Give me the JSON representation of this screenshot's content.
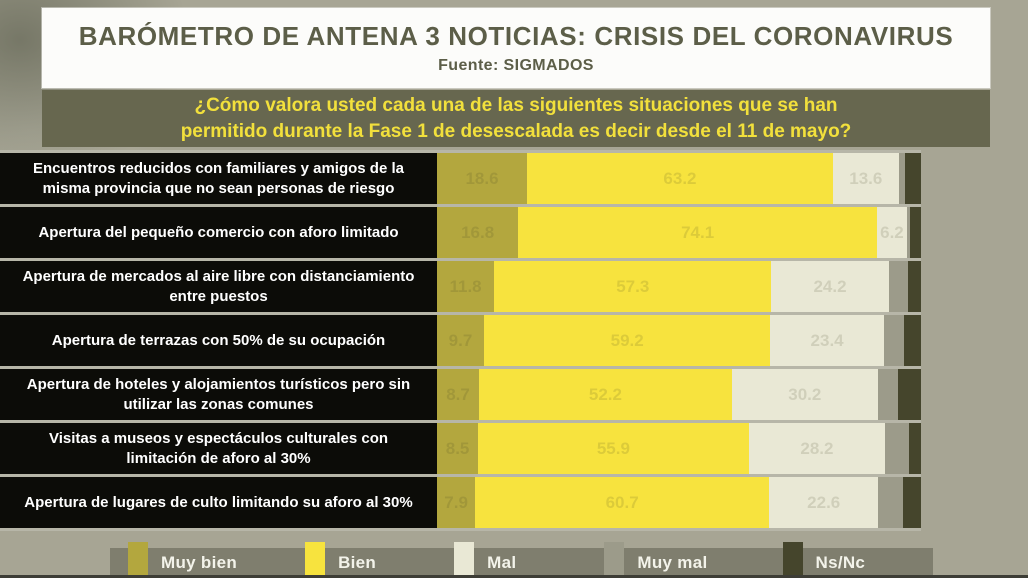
{
  "header": {
    "title": "BARÓMETRO DE ANTENA 3 NOTICIAS: CRISIS DEL CORONAVIRUS",
    "source": "Fuente: SIGMADOS"
  },
  "question": {
    "line1": "¿Cómo valora usted cada una de las siguientes situaciones que se han",
    "line2": "permitido durante la Fase 1 de desescalada es decir desde el 11 de mayo?"
  },
  "chart_data": {
    "type": "bar",
    "stacked": true,
    "orientation": "horizontal",
    "xlim": [
      0,
      100
    ],
    "legend_position": "bottom",
    "categories": [
      "Encuentros reducidos con familiares y amigos de la misma provincia que no sean personas de riesgo",
      "Apertura del pequeño comercio con aforo limitado",
      "Apertura de mercados al aire libre con distanciamiento entre puestos",
      "Apertura de terrazas con 50% de su ocupación",
      "Apertura de hoteles y alojamientos turísticos pero sin utilizar las zonas comunes",
      "Visitas a museos y espectáculos culturales con limitación de aforo al 30%",
      "Apertura de lugares de culto limitando su aforo al 30%"
    ],
    "series": [
      {
        "name": "Muy bien",
        "color": "#b3a73e",
        "values": [
          18.6,
          16.8,
          11.8,
          9.7,
          8.7,
          8.5,
          7.9
        ]
      },
      {
        "name": "Bien",
        "color": "#f7e33e",
        "values": [
          63.2,
          74.1,
          57.3,
          59.2,
          52.2,
          55.9,
          60.7
        ]
      },
      {
        "name": "Mal",
        "color": "#e9e8d5",
        "values": [
          13.6,
          6.2,
          24.2,
          23.4,
          30.2,
          28.2,
          22.6
        ]
      },
      {
        "name": "Muy mal",
        "color": "#9c9b8a",
        "values": [
          1.2,
          0.6,
          4.1,
          4.1,
          4.1,
          5.0,
          5.1
        ]
      },
      {
        "name": "Ns/Nc",
        "color": "#45452c",
        "values": [
          3.4,
          2.3,
          2.6,
          3.6,
          4.8,
          2.4,
          3.7
        ]
      }
    ]
  },
  "legend": {
    "items": [
      {
        "label": "Muy bien",
        "color": "#b3a73e"
      },
      {
        "label": "Bien",
        "color": "#f7e33e"
      },
      {
        "label": "Mal",
        "color": "#e9e8d5"
      },
      {
        "label": "Muy mal",
        "color": "#9c9b8a"
      },
      {
        "label": "Ns/Nc",
        "color": "#45452c"
      }
    ]
  },
  "colors": {
    "page_background": "#a7a594",
    "header_background": "#fcfcfa",
    "header_text": "#5c5e48",
    "question_background": "#67674f",
    "question_text": "#f2e03c",
    "row_label_background": "#0c0c08",
    "row_label_text": "#ffffff",
    "legend_band": "#7f7e6e",
    "legend_text": "#f3f3ea"
  }
}
